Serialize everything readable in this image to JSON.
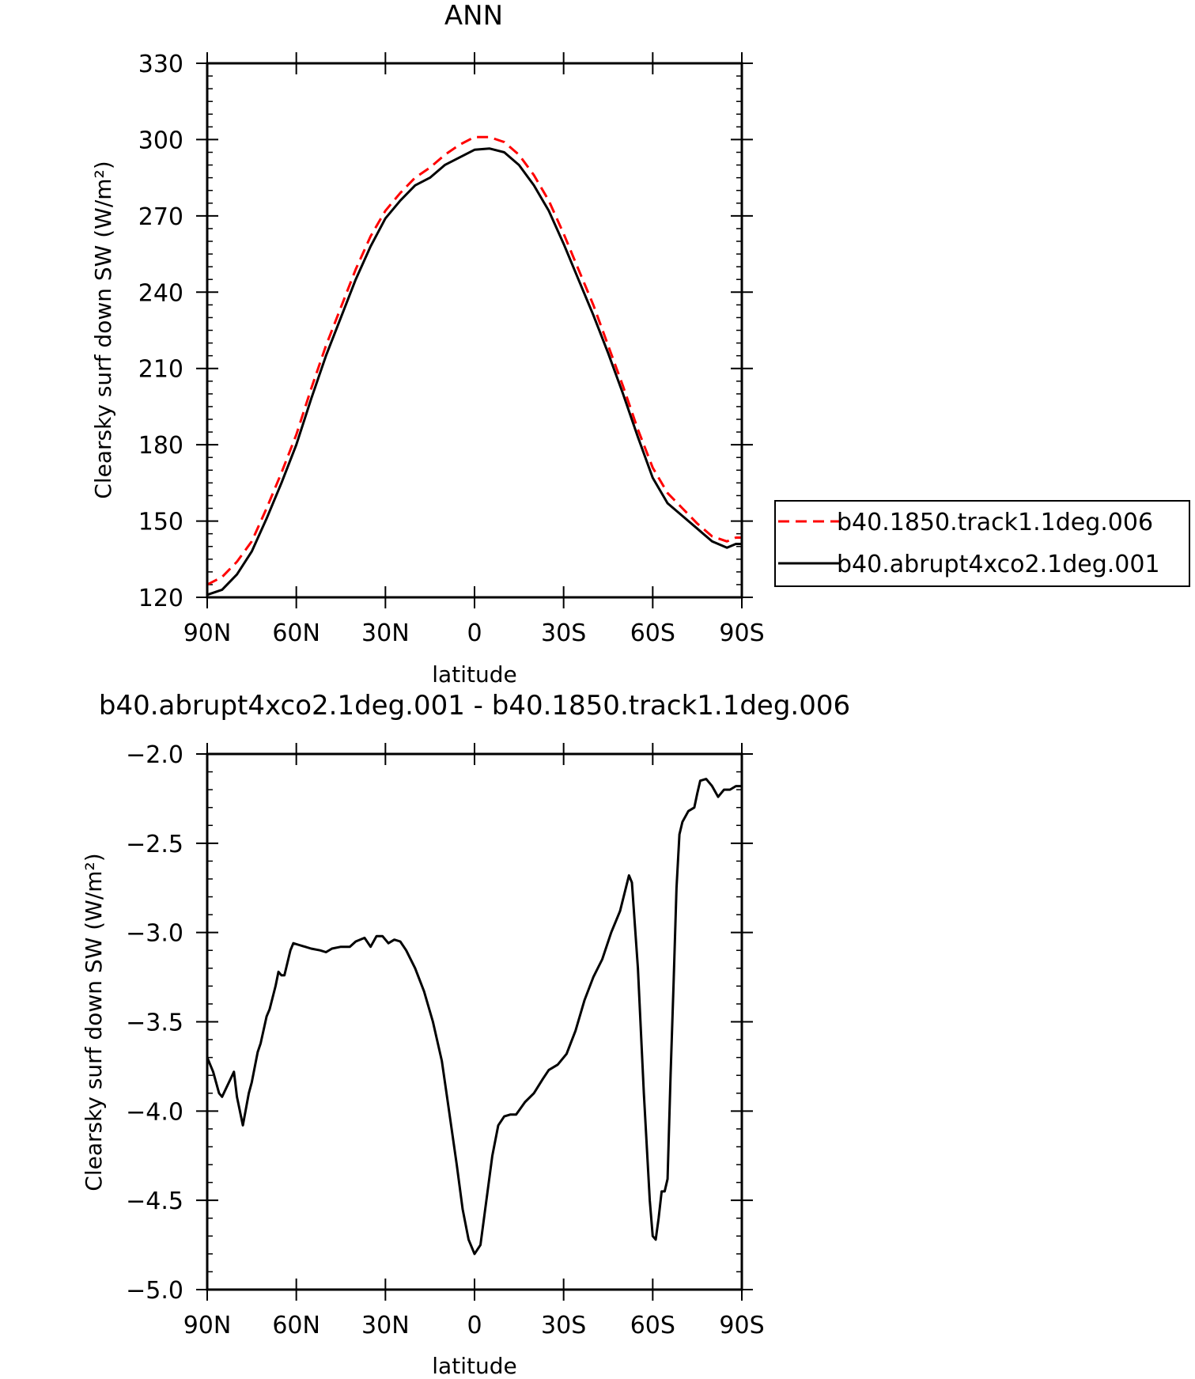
{
  "chart_data": [
    {
      "type": "line",
      "title": "ANN",
      "xlabel": "latitude",
      "ylabel": "Clearsky surf down SW (W/m²)",
      "xlim": [
        90,
        -90
      ],
      "ylim": [
        120,
        330
      ],
      "xticks": [
        90,
        60,
        30,
        0,
        -30,
        -60,
        -90
      ],
      "xtick_labels": [
        "90N",
        "60N",
        "30N",
        "0",
        "30S",
        "60S",
        "90S"
      ],
      "yticks": [
        120,
        150,
        180,
        210,
        240,
        270,
        300,
        330
      ],
      "ytick_labels": [
        "120",
        "150",
        "180",
        "210",
        "240",
        "270",
        "300",
        "330"
      ],
      "grid": false,
      "legend_position": "right",
      "series": [
        {
          "name": "b40.1850.track1.1deg.006",
          "color": "#ff0000",
          "dash": "dashed",
          "points": [
            [
              90,
              125
            ],
            [
              85,
              128
            ],
            [
              80,
              134
            ],
            [
              75,
              142
            ],
            [
              70,
              155
            ],
            [
              65,
              169
            ],
            [
              60,
              184
            ],
            [
              55,
              202
            ],
            [
              50,
              219
            ],
            [
              45,
              234
            ],
            [
              40,
              249
            ],
            [
              35,
              262
            ],
            [
              30,
              272
            ],
            [
              25,
              279
            ],
            [
              20,
              285
            ],
            [
              15,
              289
            ],
            [
              10,
              294
            ],
            [
              5,
              298
            ],
            [
              0,
              301
            ],
            [
              -5,
              301
            ],
            [
              -10,
              299
            ],
            [
              -15,
              294
            ],
            [
              -20,
              286
            ],
            [
              -25,
              276
            ],
            [
              -30,
              263
            ],
            [
              -35,
              249
            ],
            [
              -40,
              235
            ],
            [
              -45,
              219
            ],
            [
              -50,
              203
            ],
            [
              -55,
              186
            ],
            [
              -60,
              171
            ],
            [
              -65,
              161
            ],
            [
              -70,
              155
            ],
            [
              -75,
              149
            ],
            [
              -80,
              144
            ],
            [
              -85,
              142
            ],
            [
              -88,
              143.5
            ],
            [
              -90,
              143.5
            ]
          ]
        },
        {
          "name": "b40.abrupt4xco2.1deg.001",
          "color": "#000000",
          "dash": "solid",
          "points": [
            [
              90,
              121
            ],
            [
              85,
              123
            ],
            [
              80,
              129
            ],
            [
              75,
              138
            ],
            [
              70,
              151
            ],
            [
              65,
              165
            ],
            [
              60,
              180
            ],
            [
              55,
              198
            ],
            [
              50,
              215
            ],
            [
              45,
              230
            ],
            [
              40,
              245
            ],
            [
              35,
              258
            ],
            [
              30,
              269
            ],
            [
              25,
              276
            ],
            [
              20,
              282
            ],
            [
              15,
              285
            ],
            [
              10,
              290
            ],
            [
              5,
              293
            ],
            [
              0,
              296
            ],
            [
              -5,
              296.5
            ],
            [
              -10,
              295
            ],
            [
              -15,
              290
            ],
            [
              -20,
              282
            ],
            [
              -25,
              272
            ],
            [
              -30,
              259
            ],
            [
              -35,
              245
            ],
            [
              -40,
              231
            ],
            [
              -45,
              216
            ],
            [
              -50,
              200
            ],
            [
              -55,
              183
            ],
            [
              -60,
              167
            ],
            [
              -65,
              157
            ],
            [
              -70,
              152
            ],
            [
              -75,
              147
            ],
            [
              -80,
              142
            ],
            [
              -85,
              139.5
            ],
            [
              -88,
              141
            ],
            [
              -90,
              141
            ]
          ]
        }
      ]
    },
    {
      "type": "line",
      "title": "b40.abrupt4xco2.1deg.001 - b40.1850.track1.1deg.006",
      "xlabel": "latitude",
      "ylabel": "Clearsky surf down SW (W/m²)",
      "xlim": [
        90,
        -90
      ],
      "ylim": [
        -5.0,
        -2.0
      ],
      "xticks": [
        90,
        60,
        30,
        0,
        -30,
        -60,
        -90
      ],
      "xtick_labels": [
        "90N",
        "60N",
        "30N",
        "0",
        "30S",
        "60S",
        "90S"
      ],
      "yticks": [
        -5.0,
        -4.5,
        -4.0,
        -3.5,
        -3.0,
        -2.5,
        -2.0
      ],
      "ytick_labels": [
        "−5.0",
        "−4.5",
        "−4.0",
        "−3.5",
        "−3.0",
        "−2.5",
        "−2.0"
      ],
      "grid": false,
      "series": [
        {
          "color": "#000000",
          "dash": "solid",
          "points": [
            [
              90,
              -3.7
            ],
            [
              88,
              -3.78
            ],
            [
              86,
              -3.9
            ],
            [
              85,
              -3.92
            ],
            [
              83,
              -3.85
            ],
            [
              81,
              -3.78
            ],
            [
              80,
              -3.92
            ],
            [
              78,
              -4.08
            ],
            [
              76,
              -3.9
            ],
            [
              75,
              -3.84
            ],
            [
              73,
              -3.67
            ],
            [
              72,
              -3.62
            ],
            [
              70,
              -3.47
            ],
            [
              69,
              -3.43
            ],
            [
              67,
              -3.3
            ],
            [
              66,
              -3.22
            ],
            [
              65,
              -3.24
            ],
            [
              64,
              -3.24
            ],
            [
              62,
              -3.1
            ],
            [
              61,
              -3.06
            ],
            [
              59,
              -3.07
            ],
            [
              57,
              -3.08
            ],
            [
              55,
              -3.09
            ],
            [
              52,
              -3.1
            ],
            [
              50,
              -3.11
            ],
            [
              48,
              -3.09
            ],
            [
              45,
              -3.08
            ],
            [
              42,
              -3.08
            ],
            [
              40,
              -3.05
            ],
            [
              37,
              -3.03
            ],
            [
              35,
              -3.08
            ],
            [
              33,
              -3.02
            ],
            [
              31,
              -3.02
            ],
            [
              29,
              -3.06
            ],
            [
              27,
              -3.04
            ],
            [
              25,
              -3.05
            ],
            [
              23,
              -3.1
            ],
            [
              20,
              -3.2
            ],
            [
              17,
              -3.33
            ],
            [
              14,
              -3.5
            ],
            [
              11,
              -3.72
            ],
            [
              9,
              -3.95
            ],
            [
              6,
              -4.3
            ],
            [
              4,
              -4.55
            ],
            [
              2,
              -4.72
            ],
            [
              0,
              -4.8
            ],
            [
              -2,
              -4.75
            ],
            [
              -4,
              -4.5
            ],
            [
              -6,
              -4.25
            ],
            [
              -8,
              -4.08
            ],
            [
              -10,
              -4.03
            ],
            [
              -12,
              -4.02
            ],
            [
              -14,
              -4.02
            ],
            [
              -17,
              -3.95
            ],
            [
              -20,
              -3.9
            ],
            [
              -23,
              -3.82
            ],
            [
              -25,
              -3.77
            ],
            [
              -28,
              -3.74
            ],
            [
              -31,
              -3.68
            ],
            [
              -34,
              -3.55
            ],
            [
              -37,
              -3.38
            ],
            [
              -40,
              -3.25
            ],
            [
              -43,
              -3.15
            ],
            [
              -46,
              -3.0
            ],
            [
              -49,
              -2.88
            ],
            [
              -52,
              -2.68
            ],
            [
              -53,
              -2.72
            ],
            [
              -55,
              -3.2
            ],
            [
              -57,
              -3.9
            ],
            [
              -59,
              -4.5
            ],
            [
              -60,
              -4.7
            ],
            [
              -61,
              -4.72
            ],
            [
              -62,
              -4.6
            ],
            [
              -63,
              -4.45
            ],
            [
              -64,
              -4.45
            ],
            [
              -65,
              -4.38
            ],
            [
              -66,
              -3.8
            ],
            [
              -67,
              -3.3
            ],
            [
              -68,
              -2.75
            ],
            [
              -69,
              -2.45
            ],
            [
              -70,
              -2.38
            ],
            [
              -72,
              -2.32
            ],
            [
              -74,
              -2.3
            ],
            [
              -75,
              -2.22
            ],
            [
              -76,
              -2.15
            ],
            [
              -78,
              -2.14
            ],
            [
              -80,
              -2.18
            ],
            [
              -82,
              -2.24
            ],
            [
              -84,
              -2.2
            ],
            [
              -86,
              -2.2
            ],
            [
              -88,
              -2.18
            ],
            [
              -90,
              -2.18
            ]
          ]
        }
      ]
    }
  ]
}
